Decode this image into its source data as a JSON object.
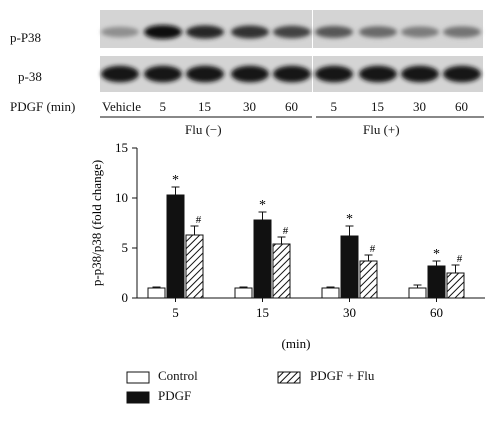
{
  "blot": {
    "row1_label": "p-P38",
    "row2_label": "p-38",
    "pdgf_label": "PDGF (min)",
    "lanes": [
      "Vehicle",
      "5",
      "15",
      "30",
      "60",
      "5",
      "15",
      "30",
      "60"
    ],
    "group_minus": "Flu (−)",
    "group_plus": "Flu (+)",
    "p_p38_band_intensity": [
      0.3,
      1.0,
      0.85,
      0.8,
      0.7,
      0.6,
      0.5,
      0.4,
      0.45
    ],
    "p38_band_intensity": [
      0.95,
      0.95,
      0.95,
      0.95,
      0.95,
      0.95,
      0.95,
      0.95,
      0.95
    ]
  },
  "chart_data": {
    "type": "bar",
    "categories": [
      "5",
      "15",
      "30",
      "60"
    ],
    "xlabel": "(min)",
    "ylabel": "p-p38/p38 (fold change)",
    "ylim": [
      0,
      15
    ],
    "yticks": [
      "0",
      "5",
      "10",
      "15"
    ],
    "series": [
      {
        "name": "Control",
        "values": [
          1.0,
          1.0,
          1.0,
          1.0
        ],
        "errors": [
          0.1,
          0.1,
          0.1,
          0.3
        ],
        "marker": ""
      },
      {
        "name": "PDGF",
        "values": [
          10.3,
          7.8,
          6.2,
          3.2
        ],
        "errors": [
          0.8,
          0.8,
          1.0,
          0.5
        ],
        "marker": "*"
      },
      {
        "name": "PDGF + Flu",
        "values": [
          6.3,
          5.4,
          3.7,
          2.5
        ],
        "errors": [
          0.9,
          0.7,
          0.6,
          0.8
        ],
        "marker": "#"
      }
    ],
    "legend": [
      "Control",
      "PDGF",
      "PDGF + Flu"
    ],
    "legend_position": "bottom",
    "grid": false
  }
}
